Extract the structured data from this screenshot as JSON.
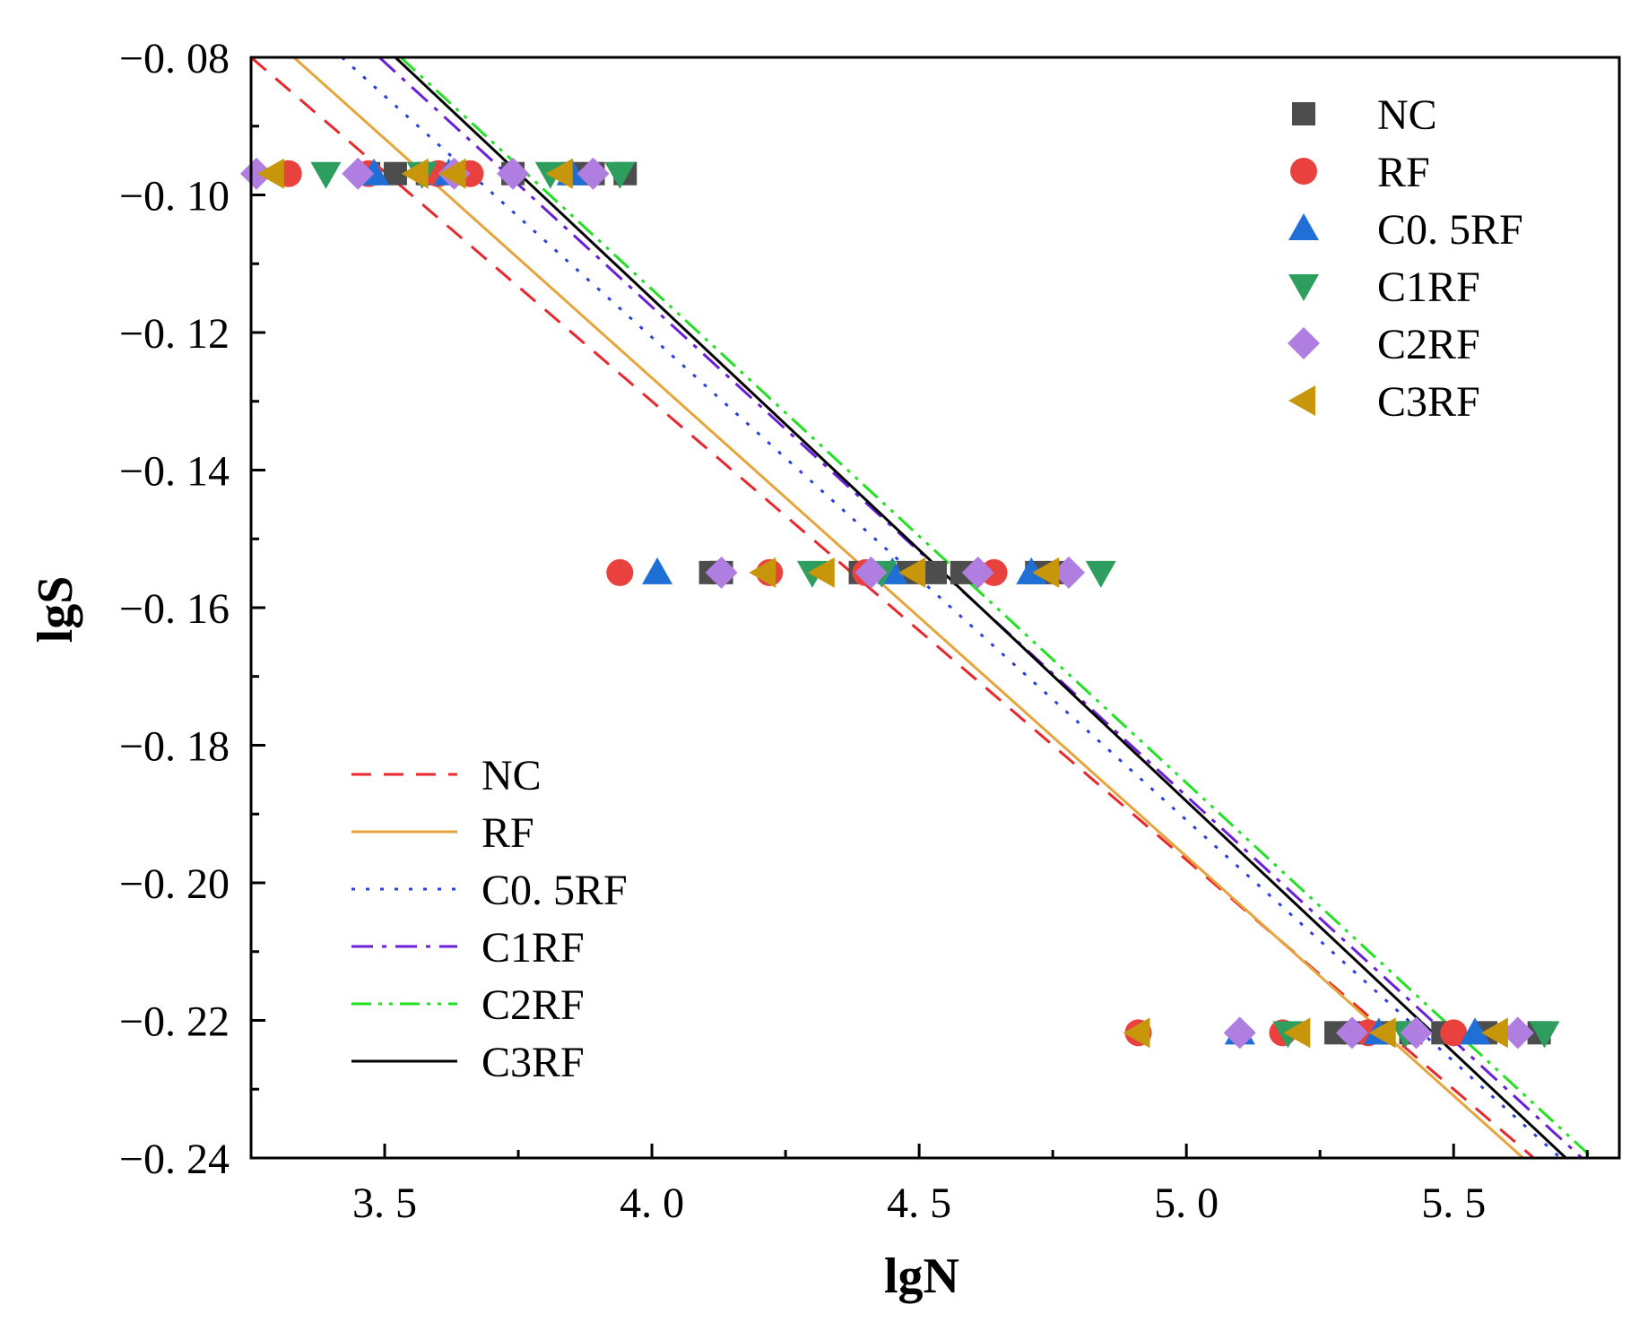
{
  "chart_data": {
    "type": "scatter",
    "title": "",
    "xlabel": "lgN",
    "ylabel": "lgS",
    "xlim": [
      3.25,
      5.81
    ],
    "ylim": [
      -0.24,
      -0.08
    ],
    "xticks": [
      3.5,
      4.0,
      4.5,
      5.0,
      5.5
    ],
    "xtick_labels": [
      "3. 5",
      "4. 0",
      "4. 5",
      "5. 0",
      "5. 5"
    ],
    "yticks": [
      -0.08,
      -0.1,
      -0.12,
      -0.14,
      -0.16,
      -0.18,
      -0.2,
      -0.22,
      -0.24
    ],
    "ytick_labels": [
      "−0. 08",
      "−0. 10",
      "−0. 12",
      "−0. 14",
      "−0. 16",
      "−0. 18",
      "−0. 20",
      "−0. 22",
      "−0. 24"
    ],
    "scatter_series": [
      {
        "name": "NC",
        "marker": "square",
        "color": "#4d4d4d",
        "points": [
          [
            3.47,
            -0.0969
          ],
          [
            3.52,
            -0.0969
          ],
          [
            3.58,
            -0.0969
          ],
          [
            3.74,
            -0.0969
          ],
          [
            3.85,
            -0.0969
          ],
          [
            3.89,
            -0.0969
          ],
          [
            3.95,
            -0.0969
          ],
          [
            4.11,
            -0.1549
          ],
          [
            4.13,
            -0.1549
          ],
          [
            4.39,
            -0.1549
          ],
          [
            4.48,
            -0.1549
          ],
          [
            4.53,
            -0.1549
          ],
          [
            4.58,
            -0.1549
          ],
          [
            4.72,
            -0.1549
          ],
          [
            4.76,
            -0.1549
          ],
          [
            5.28,
            -0.2218
          ],
          [
            5.31,
            -0.2218
          ],
          [
            5.36,
            -0.2218
          ],
          [
            5.42,
            -0.2218
          ],
          [
            5.48,
            -0.2218
          ],
          [
            5.56,
            -0.2218
          ],
          [
            5.66,
            -0.2218
          ]
        ]
      },
      {
        "name": "RF",
        "marker": "circle",
        "color": "#e8413e",
        "points": [
          [
            3.32,
            -0.0969
          ],
          [
            3.47,
            -0.0969
          ],
          [
            3.6,
            -0.0969
          ],
          [
            3.66,
            -0.0969
          ],
          [
            3.94,
            -0.1549
          ],
          [
            4.22,
            -0.1549
          ],
          [
            4.4,
            -0.1549
          ],
          [
            4.64,
            -0.1549
          ],
          [
            4.91,
            -0.2218
          ],
          [
            5.18,
            -0.2218
          ],
          [
            5.34,
            -0.2218
          ],
          [
            5.5,
            -0.2218
          ]
        ]
      },
      {
        "name": "C0. 5RF",
        "marker": "triangle-up",
        "color": "#1f6fd6",
        "points": [
          [
            3.48,
            -0.0969
          ],
          [
            3.62,
            -0.0969
          ],
          [
            3.85,
            -0.0969
          ],
          [
            4.01,
            -0.1549
          ],
          [
            4.45,
            -0.1549
          ],
          [
            4.71,
            -0.1549
          ],
          [
            5.1,
            -0.2218
          ],
          [
            5.36,
            -0.2218
          ],
          [
            5.54,
            -0.2218
          ]
        ]
      },
      {
        "name": "C1RF",
        "marker": "triangle-down",
        "color": "#2e9e5e",
        "points": [
          [
            3.39,
            -0.0969
          ],
          [
            3.57,
            -0.0969
          ],
          [
            3.81,
            -0.0969
          ],
          [
            3.94,
            -0.0969
          ],
          [
            4.3,
            -0.1549
          ],
          [
            4.43,
            -0.1549
          ],
          [
            4.84,
            -0.1549
          ],
          [
            5.19,
            -0.2218
          ],
          [
            5.41,
            -0.2218
          ],
          [
            5.67,
            -0.2218
          ]
        ]
      },
      {
        "name": "C2RF",
        "marker": "diamond",
        "color": "#b07de0",
        "points": [
          [
            3.26,
            -0.0969
          ],
          [
            3.45,
            -0.0969
          ],
          [
            3.63,
            -0.0969
          ],
          [
            3.74,
            -0.0969
          ],
          [
            3.89,
            -0.0969
          ],
          [
            4.13,
            -0.1549
          ],
          [
            4.41,
            -0.1549
          ],
          [
            4.61,
            -0.1549
          ],
          [
            4.78,
            -0.1549
          ],
          [
            5.1,
            -0.2218
          ],
          [
            5.31,
            -0.2218
          ],
          [
            5.43,
            -0.2218
          ],
          [
            5.62,
            -0.2218
          ]
        ]
      },
      {
        "name": "C3RF",
        "marker": "triangle-left",
        "color": "#c8960a",
        "points": [
          [
            3.29,
            -0.0969
          ],
          [
            3.56,
            -0.0969
          ],
          [
            3.63,
            -0.0969
          ],
          [
            3.83,
            -0.0969
          ],
          [
            4.21,
            -0.1549
          ],
          [
            4.32,
            -0.1549
          ],
          [
            4.49,
            -0.1549
          ],
          [
            4.74,
            -0.1549
          ],
          [
            4.91,
            -0.2218
          ],
          [
            5.21,
            -0.2218
          ],
          [
            5.37,
            -0.2218
          ],
          [
            5.58,
            -0.2218
          ]
        ]
      }
    ],
    "line_series": [
      {
        "name": "NC",
        "style": "dashed",
        "color": "#e8282c",
        "x": [
          3.25,
          5.65
        ],
        "y": [
          -0.08,
          -0.24
        ]
      },
      {
        "name": "RF",
        "style": "solid",
        "color": "#e6a43a",
        "x": [
          3.33,
          5.63
        ],
        "y": [
          -0.08,
          -0.24
        ]
      },
      {
        "name": "C0. 5RF",
        "style": "dotted",
        "color": "#2b3fe0",
        "x": [
          3.42,
          5.7
        ],
        "y": [
          -0.08,
          -0.24
        ]
      },
      {
        "name": "C1RF",
        "style": "dashdot",
        "color": "#6a1fd9",
        "x": [
          3.49,
          5.74
        ],
        "y": [
          -0.08,
          -0.24
        ]
      },
      {
        "name": "C2RF",
        "style": "dashdotdot",
        "color": "#22e022",
        "x": [
          3.53,
          5.76
        ],
        "y": [
          -0.08,
          -0.24
        ]
      },
      {
        "name": "C3RF",
        "style": "solid",
        "color": "#000000",
        "x": [
          3.52,
          5.71
        ],
        "y": [
          -0.08,
          -0.24
        ]
      }
    ],
    "legend_markers_position": "top-right",
    "legend_lines_position": "bottom-left",
    "grid": false
  }
}
